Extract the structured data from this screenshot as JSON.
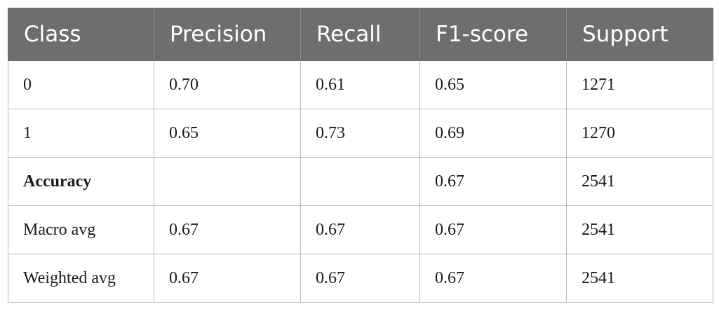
{
  "table": {
    "headers": [
      "Class",
      "Precision",
      "Recall",
      "F1-score",
      "Support"
    ],
    "rows": [
      {
        "cells": [
          "0",
          "0.70",
          "0.61",
          "0.65",
          "1271"
        ]
      },
      {
        "cells": [
          "1",
          "0.65",
          "0.73",
          "0.69",
          "1270"
        ]
      },
      {
        "cells": [
          "Accuracy",
          "",
          "",
          "0.67",
          "2541"
        ]
      },
      {
        "cells": [
          "Macro avg",
          "0.67",
          "0.67",
          "0.67",
          "2541"
        ]
      },
      {
        "cells": [
          "Weighted avg",
          "0.67",
          "0.67",
          "0.67",
          "2541"
        ]
      }
    ]
  },
  "styles": {
    "header_background": "#6d6e70",
    "header_text_color": "#ffffff",
    "grid_color": "#b8b8b8"
  }
}
